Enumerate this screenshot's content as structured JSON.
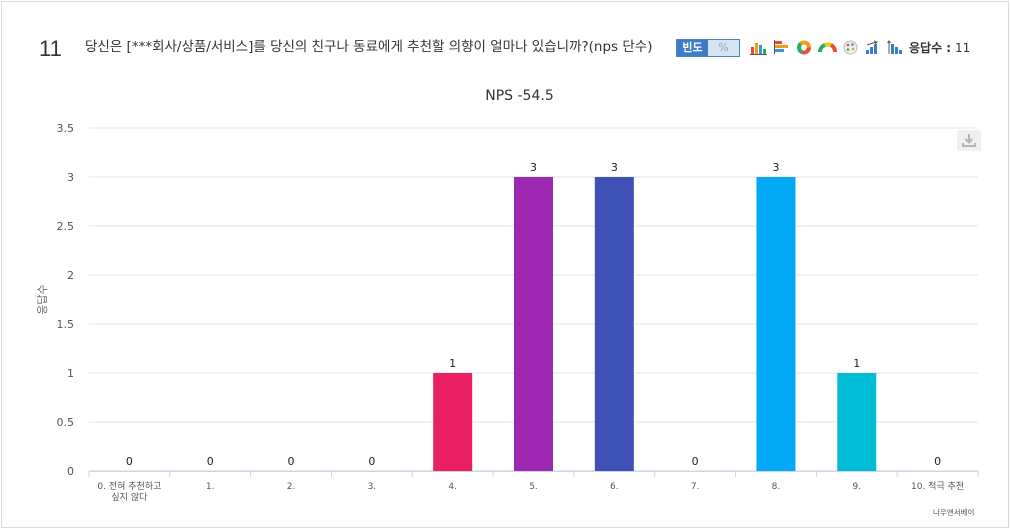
{
  "question": {
    "number": "11",
    "title": "당신은 [***회사/상품/서비스]를 당신의 친구나 동료에게 추천할 의향이 얼마나 있습니까?(nps 단수)"
  },
  "toolbar": {
    "freq_label": "빈도",
    "percent_label": "%",
    "response_label": "응답수 :",
    "response_count": "11",
    "icons": [
      "bar-chart-icon",
      "horizontal-bar-icon",
      "donut-chart-icon",
      "gauge-chart-icon",
      "palette-icon",
      "ascending-sort-icon",
      "descending-sort-icon"
    ]
  },
  "footer": {
    "credit": "나우앤서베이"
  },
  "chart_data": {
    "type": "bar",
    "title": "NPS -54.5",
    "ylabel": "응답수",
    "xlabel": "",
    "ylim": [
      0,
      3.5
    ],
    "yticks": [
      "0",
      "0.5",
      "1",
      "1.5",
      "2",
      "2.5",
      "3",
      "3.5"
    ],
    "categories": [
      "0. 전혀 추천하고 싶지 않다",
      "1.",
      "2.",
      "3.",
      "4.",
      "5.",
      "6.",
      "7.",
      "8.",
      "9.",
      "10. 적극 추천"
    ],
    "values": [
      0,
      0,
      0,
      0,
      1,
      3,
      3,
      0,
      3,
      1,
      0
    ],
    "colors": [
      "#9e9e9e",
      "#9e9e9e",
      "#9e9e9e",
      "#9e9e9e",
      "#e91e63",
      "#9c27b0",
      "#3f51b5",
      "#9e9e9e",
      "#03a9f4",
      "#00bcd4",
      "#9e9e9e"
    ],
    "data_labels": [
      "0",
      "0",
      "0",
      "0",
      "1",
      "3",
      "3",
      "0",
      "3",
      "1",
      "0"
    ],
    "grid": true
  }
}
